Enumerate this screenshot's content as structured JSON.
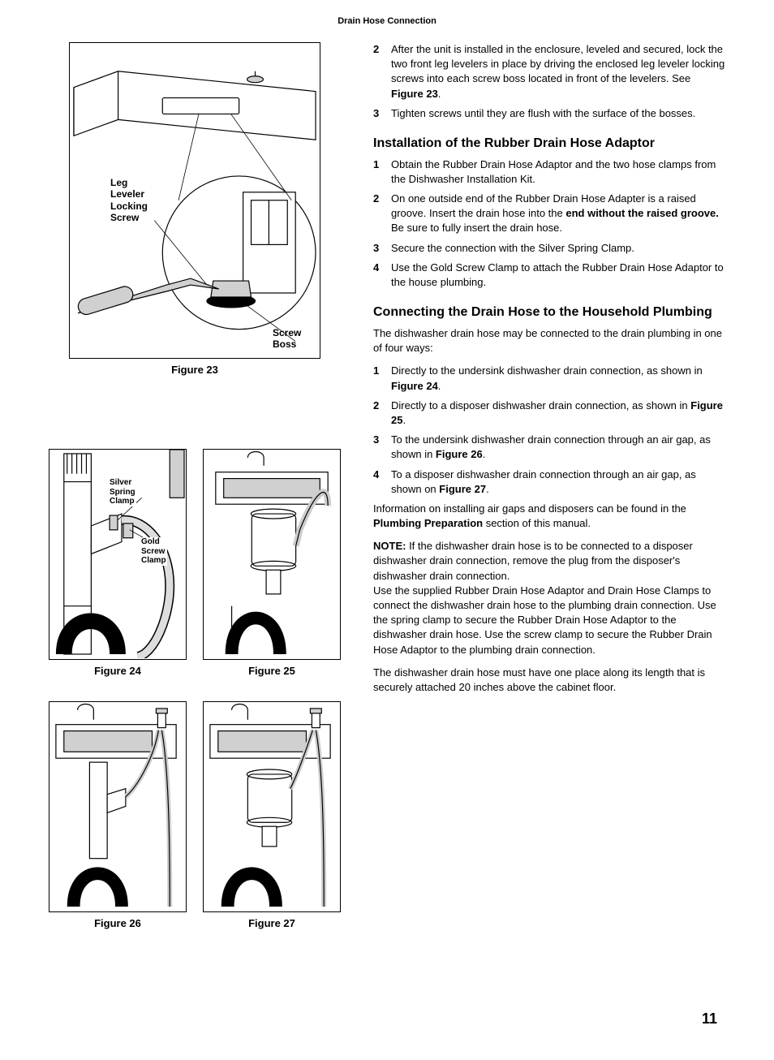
{
  "header": "Drain Hose Connection",
  "pageNumber": "11",
  "figures": {
    "f23": {
      "caption": "Figure 23",
      "labels": {
        "leg": "Leg\nLeveler\nLocking\nScrew",
        "boss": "Screw\nBoss"
      }
    },
    "f24": {
      "caption": "Figure 24",
      "labels": {
        "silver": "Silver\nSpring\nClamp",
        "gold": "Gold\nScrew\nClamp"
      }
    },
    "f25": {
      "caption": "Figure 25"
    },
    "f26": {
      "caption": "Figure 26"
    },
    "f27": {
      "caption": "Figure 27"
    }
  },
  "steps1": [
    {
      "n": "2",
      "t_pre": "After the unit is installed in the enclosure, leveled and secured, lock the two front leg levelers in place by driving the enclosed leg leveler locking screws into each screw boss located in front of the levelers. See ",
      "bold": "Figure 23",
      "t_post": "."
    },
    {
      "n": "3",
      "t_pre": "Tighten screws until they are flush with the surface of the bosses.",
      "bold": "",
      "t_post": ""
    }
  ],
  "section2": {
    "title": "Installation of the Rubber Drain Hose Adaptor",
    "steps": [
      {
        "n": "1",
        "html": "Obtain the Rubber Drain Hose Adaptor and the two hose clamps from the Dishwasher Installation Kit."
      },
      {
        "n": "2",
        "html": "On one outside end of the Rubber Drain Hose Adapter is a raised groove. Insert the drain hose into the <b>end without the raised groove.</b> Be sure to fully insert the drain hose."
      },
      {
        "n": "3",
        "html": "Secure the connection with the Silver Spring Clamp."
      },
      {
        "n": "4",
        "html": "Use the Gold Screw Clamp to attach the Rubber Drain Hose Adaptor to the house plumbing."
      }
    ]
  },
  "section3": {
    "title": "Connecting the Drain Hose to the Household Plumbing",
    "intro": "The dishwasher drain hose may be connected to the drain plumbing in one of four ways:",
    "steps": [
      {
        "n": "1",
        "html": "Directly to the undersink dishwasher drain connection, as shown in <b>Figure 24</b>."
      },
      {
        "n": "2",
        "html": "Directly to a disposer dishwasher drain connection, as shown in <b>Figure 25</b>."
      },
      {
        "n": "3",
        "html": "To the undersink dishwasher drain connection through an air gap, as shown in <b>Figure 26</b>."
      },
      {
        "n": "4",
        "html": "To a disposer dishwasher drain connection through an air gap, as shown on <b>Figure 27</b>."
      }
    ],
    "para1": "Information on installing air gaps and disposers can be found in the <b>Plumbing Preparation</b> section of this manual.",
    "para2": "<b>NOTE:</b> If the dishwasher drain hose is to be connected to a disposer dishwasher drain connection, remove the plug from the disposer's dishwasher drain connection.",
    "para3": "Use the supplied Rubber Drain Hose Adaptor and Drain Hose Clamps to connect the dishwasher drain hose to the plumbing drain connection. Use the spring clamp to secure the Rubber Drain Hose Adaptor to the dishwasher drain hose. Use the screw clamp to secure the Rubber Drain Hose Adaptor to the plumbing drain connection.",
    "para4": "The dishwasher drain hose must have one place along its length that is securely attached 20 inches above the cabinet floor."
  }
}
